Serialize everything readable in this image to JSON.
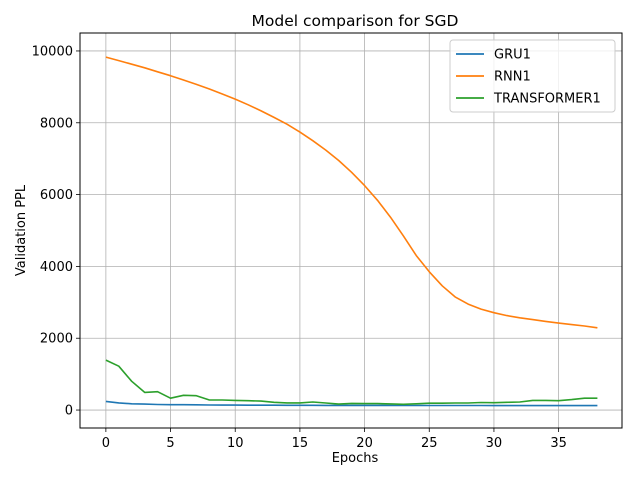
{
  "chart_data": {
    "type": "line",
    "title": "Model comparison for SGD",
    "xlabel": "Epochs",
    "ylabel": "Validation PPL",
    "xlim": [
      -2,
      39.9
    ],
    "ylim": [
      -500,
      10500
    ],
    "xticks": [
      0,
      5,
      10,
      15,
      20,
      25,
      30,
      35
    ],
    "yticks": [
      0,
      2000,
      4000,
      6000,
      8000,
      10000
    ],
    "grid": true,
    "legend_position": "top-right",
    "x": [
      0,
      1,
      2,
      3,
      4,
      5,
      6,
      7,
      8,
      9,
      10,
      11,
      12,
      13,
      14,
      15,
      16,
      17,
      18,
      19,
      20,
      21,
      22,
      23,
      24,
      25,
      26,
      27,
      28,
      29,
      30,
      31,
      32,
      33,
      34,
      35,
      36,
      37,
      38
    ],
    "series": [
      {
        "name": "GRU1",
        "color": "#1f77b4",
        "values": [
          240,
          200,
          175,
          165,
          155,
          150,
          148,
          145,
          140,
          138,
          137,
          136,
          135,
          134,
          133,
          132,
          131,
          130,
          130,
          129,
          129,
          128,
          128,
          127,
          127,
          127,
          126,
          126,
          126,
          126,
          125,
          125,
          125,
          125,
          125,
          125,
          124,
          124,
          124
        ]
      },
      {
        "name": "RNN1",
        "color": "#ff7f0e",
        "values": [
          9830,
          9730,
          9630,
          9530,
          9420,
          9310,
          9190,
          9070,
          8940,
          8800,
          8660,
          8500,
          8330,
          8150,
          7960,
          7740,
          7500,
          7240,
          6950,
          6620,
          6250,
          5840,
          5370,
          4850,
          4300,
          3850,
          3460,
          3150,
          2950,
          2810,
          2710,
          2630,
          2570,
          2520,
          2470,
          2420,
          2380,
          2340,
          2290
        ]
      },
      {
        "name": "TRANSFORMER1",
        "color": "#2ca02c",
        "values": [
          1390,
          1220,
          800,
          490,
          510,
          330,
          410,
          400,
          280,
          280,
          270,
          260,
          250,
          215,
          200,
          200,
          225,
          195,
          165,
          185,
          180,
          180,
          170,
          160,
          175,
          190,
          190,
          195,
          195,
          210,
          205,
          215,
          225,
          270,
          270,
          260,
          290,
          330,
          330
        ]
      }
    ]
  }
}
